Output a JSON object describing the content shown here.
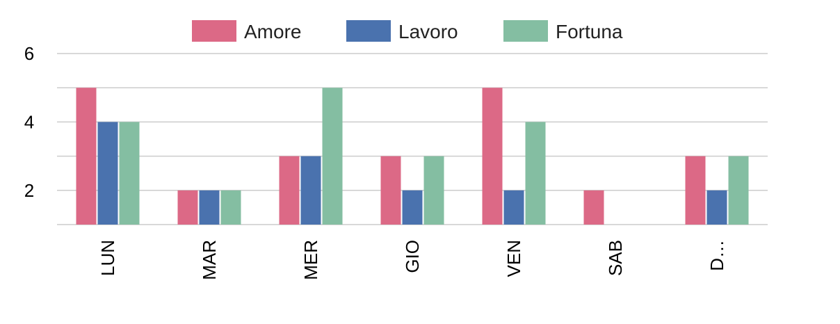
{
  "chart_data": {
    "type": "bar",
    "categories": [
      "LUN",
      "MAR",
      "MER",
      "GIO",
      "VEN",
      "SAB",
      "D…"
    ],
    "series": [
      {
        "name": "Amore",
        "color": "#DC6986",
        "values": [
          5,
          2,
          3,
          3,
          5,
          2,
          3
        ]
      },
      {
        "name": "Lavoro",
        "color": "#4A72AE",
        "values": [
          4,
          2,
          3,
          2,
          2,
          null,
          2
        ]
      },
      {
        "name": "Fortuna",
        "color": "#84BEA2",
        "values": [
          4,
          2,
          5,
          3,
          4,
          null,
          3
        ]
      }
    ],
    "yticks": [
      2,
      4,
      6
    ],
    "ylim": [
      1,
      6
    ],
    "grid": true,
    "legend_position": "top"
  }
}
